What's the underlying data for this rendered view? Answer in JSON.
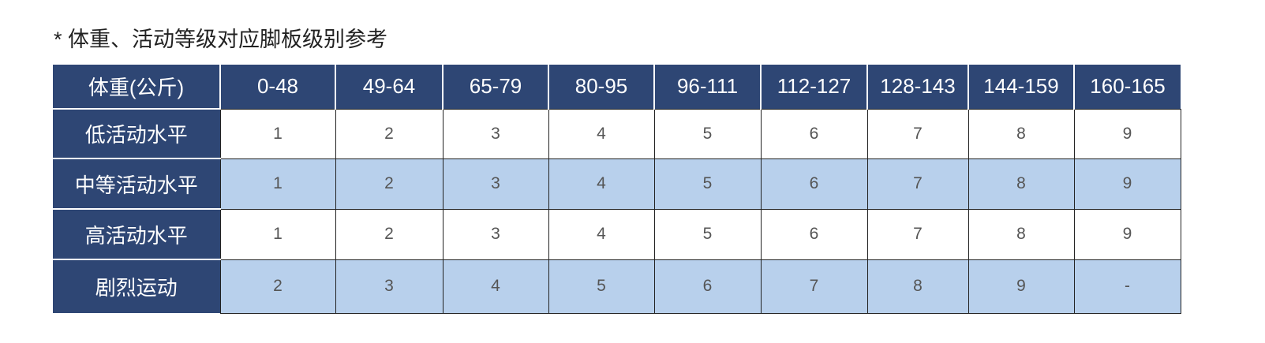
{
  "header": {
    "title": "* 体重、活动等级对应脚板级别参考"
  },
  "table": {
    "columns": [
      "体重(公斤)",
      "0-48",
      "49-64",
      "65-79",
      "80-95",
      "96-111",
      "112-127",
      "128-143",
      "144-159",
      "160-165"
    ],
    "rows": [
      [
        "低活动水平",
        1,
        2,
        3,
        4,
        5,
        6,
        7,
        8,
        9
      ],
      [
        "中等活动水平",
        1,
        2,
        3,
        4,
        5,
        6,
        7,
        8,
        9
      ],
      [
        "高活动水平",
        1,
        2,
        3,
        4,
        5,
        6,
        7,
        8,
        9
      ],
      [
        "剧烈运动",
        2,
        3,
        4,
        5,
        6,
        7,
        8,
        9,
        "-"
      ]
    ]
  }
}
